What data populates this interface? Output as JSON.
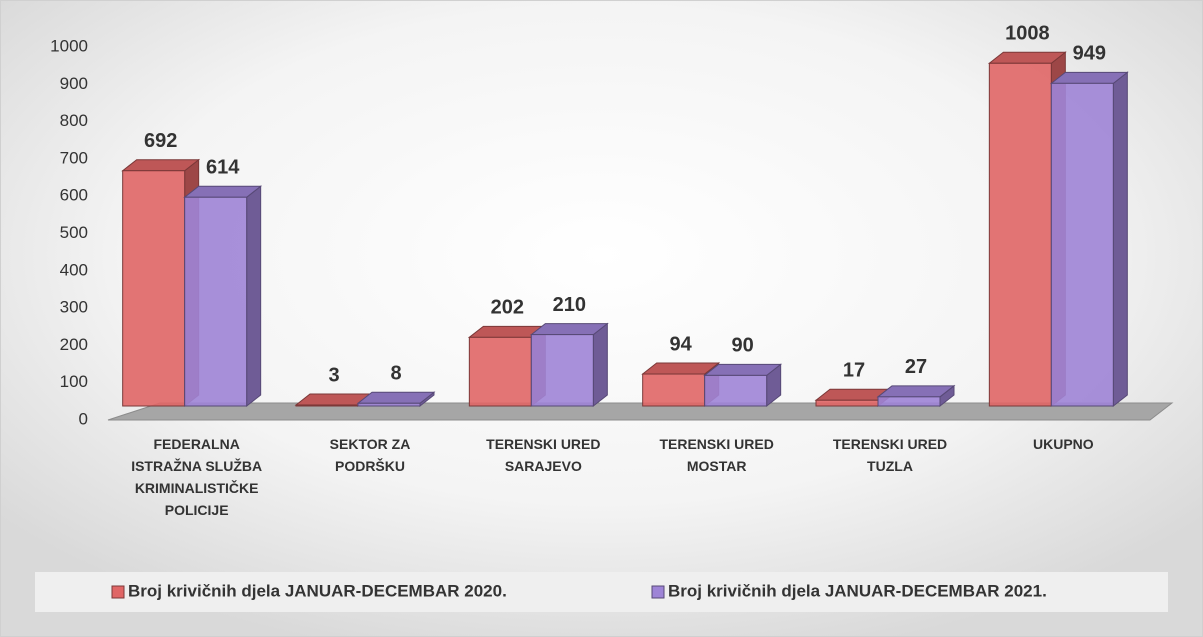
{
  "chart_data": {
    "type": "bar3d",
    "categories": [
      "FEDERALNA ISTRAŽNA SLUŽBA KRIMINALISTIČKE POLICIJE",
      "SEKTOR ZA PODRŠKU",
      "TERENSKI URED SARAJEVO",
      "TERENSKI URED MOSTAR",
      "TERENSKI URED TUZLA",
      "UKUPNO"
    ],
    "series": [
      {
        "name": "Broj krivičnih djela JANUAR-DECEMBAR 2020.",
        "color": "#e06666",
        "values": [
          692,
          3,
          202,
          94,
          17,
          1008
        ]
      },
      {
        "name": "Broj krivičnih djela JANUAR-DECEMBAR 2021.",
        "color": "#9e84d6",
        "values": [
          614,
          8,
          210,
          90,
          27,
          949
        ]
      }
    ],
    "ylim": [
      0,
      1000
    ],
    "yticks": [
      0,
      100,
      200,
      300,
      400,
      500,
      600,
      700,
      800,
      900,
      1000
    ],
    "legend": "bottom"
  }
}
